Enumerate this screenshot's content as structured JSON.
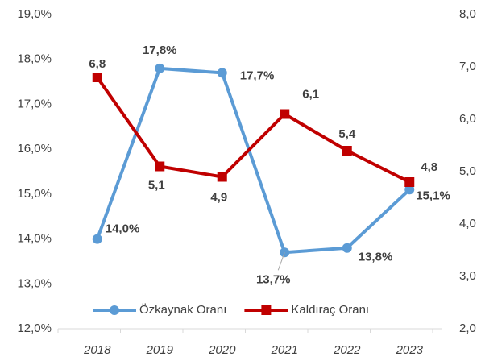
{
  "chart_data": {
    "type": "line",
    "categories": [
      "2018",
      "2019",
      "2020",
      "2021",
      "2022",
      "2023"
    ],
    "series": [
      {
        "name": "Özkaynak Oranı",
        "color": "#5b9bd5",
        "values": [
          14.0,
          17.8,
          17.7,
          13.7,
          13.8,
          15.1
        ],
        "value_labels": [
          "14,0%",
          "17,8%",
          "17,7%",
          "13,7%",
          "13,8%",
          "15,1%"
        ]
      },
      {
        "name": "Kaldıraç Oranı",
        "color": "#c00000",
        "axis": "y2",
        "values": [
          6.8,
          5.1,
          4.9,
          6.1,
          5.4,
          4.8
        ],
        "value_labels": [
          "6,8",
          "5,1",
          "4,9",
          "6,1",
          "5,4",
          "4,8"
        ]
      }
    ],
    "ylim": [
      12,
      19
    ],
    "yticks": [
      {
        "value": 12,
        "label": "12,0%"
      },
      {
        "value": 13,
        "label": "13,0%"
      },
      {
        "value": 14,
        "label": "14,0%"
      },
      {
        "value": 15,
        "label": "15,0%"
      },
      {
        "value": 16,
        "label": "16,0%"
      },
      {
        "value": 17,
        "label": "17,0%"
      },
      {
        "value": 18,
        "label": "18,0%"
      },
      {
        "value": 19,
        "label": "19,0%"
      }
    ],
    "y2lim": [
      2,
      8
    ],
    "y2ticks": [
      {
        "value": 2,
        "label": "2,0"
      },
      {
        "value": 3,
        "label": "3,0"
      },
      {
        "value": 4,
        "label": "4,0"
      },
      {
        "value": 5,
        "label": "5,0"
      },
      {
        "value": 6,
        "label": "6,0"
      },
      {
        "value": 7,
        "label": "7,0"
      },
      {
        "value": 8,
        "label": "8,0"
      }
    ],
    "legend": "lower center",
    "grid": false
  }
}
